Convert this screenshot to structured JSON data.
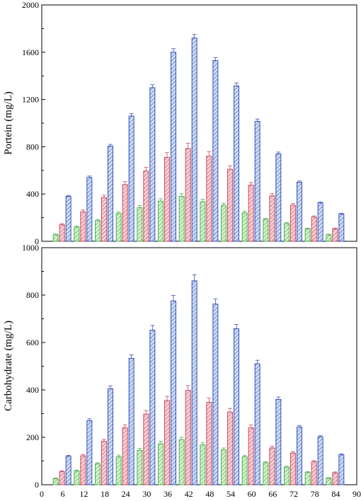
{
  "chart_data": [
    {
      "type": "bar",
      "title": "",
      "xlabel": "",
      "ylabel": "Portein (mg/L)",
      "ylim": [
        0,
        2000
      ],
      "yticks": [
        0,
        400,
        800,
        1200,
        1600,
        2000
      ],
      "ytick_labels": [
        "0",
        "400",
        "800",
        "1200",
        "1600",
        "2000"
      ],
      "x": [
        6,
        12,
        18,
        24,
        30,
        36,
        42,
        48,
        54,
        60,
        66,
        72,
        78,
        84
      ],
      "xlim": [
        0,
        90
      ],
      "legend": "none",
      "grid": false,
      "series": [
        {
          "color": "#4caf50",
          "fill": "#d6f2cf",
          "values": [
            55,
            120,
            175,
            235,
            285,
            340,
            380,
            335,
            305,
            240,
            185,
            150,
            105,
            55
          ],
          "errors": [
            6,
            8,
            10,
            14,
            18,
            20,
            22,
            20,
            18,
            15,
            10,
            8,
            6,
            5
          ]
        },
        {
          "color": "#c84a5c",
          "fill": "#f7d3d8",
          "values": [
            140,
            250,
            370,
            480,
            595,
            710,
            785,
            720,
            610,
            475,
            385,
            305,
            205,
            105
          ],
          "errors": [
            10,
            15,
            20,
            25,
            30,
            40,
            45,
            40,
            30,
            22,
            18,
            15,
            10,
            7
          ]
        },
        {
          "color": "#3a4fb5",
          "fill": "#cfe0f5",
          "values": [
            380,
            540,
            805,
            1060,
            1300,
            1600,
            1720,
            1530,
            1315,
            1015,
            740,
            500,
            325,
            230
          ],
          "errors": [
            8,
            12,
            15,
            20,
            25,
            30,
            30,
            25,
            25,
            20,
            15,
            10,
            8,
            6
          ]
        }
      ]
    },
    {
      "type": "bar",
      "title": "",
      "xlabel": "",
      "ylabel": "Carbohydrate (mg/L)",
      "ylim": [
        0,
        1000
      ],
      "yticks": [
        0,
        200,
        400,
        600,
        800,
        1000
      ],
      "ytick_labels": [
        "0",
        "200",
        "400",
        "600",
        "800",
        "1000"
      ],
      "x": [
        6,
        12,
        18,
        24,
        30,
        36,
        42,
        48,
        54,
        60,
        66,
        72,
        78,
        84
      ],
      "xlim": [
        0,
        90
      ],
      "xticks": [
        0,
        6,
        12,
        18,
        24,
        30,
        36,
        42,
        48,
        54,
        60,
        66,
        72,
        78,
        84,
        90
      ],
      "xtick_labels": [
        "0",
        "6",
        "12",
        "18",
        "24",
        "30",
        "36",
        "42",
        "48",
        "54",
        "60",
        "66",
        "72",
        "78",
        "84",
        "90"
      ],
      "legend": "none",
      "grid": false,
      "series": [
        {
          "color": "#4caf50",
          "fill": "#d6f2cf",
          "values": [
            25,
            58,
            88,
            118,
            145,
            173,
            190,
            168,
            147,
            118,
            93,
            74,
            52,
            27
          ],
          "errors": [
            3,
            4,
            5,
            7,
            8,
            10,
            10,
            9,
            8,
            6,
            5,
            4,
            3,
            3
          ]
        },
        {
          "color": "#c84a5c",
          "fill": "#f7d3d8",
          "values": [
            55,
            122,
            183,
            240,
            298,
            355,
            398,
            348,
            307,
            240,
            155,
            133,
            97,
            50
          ],
          "errors": [
            4,
            6,
            8,
            12,
            15,
            18,
            20,
            17,
            15,
            12,
            8,
            6,
            5,
            4
          ]
        },
        {
          "color": "#3a4fb5",
          "fill": "#cfe0f5",
          "values": [
            120,
            270,
            405,
            533,
            652,
            775,
            860,
            762,
            658,
            510,
            360,
            243,
            202,
            126
          ],
          "errors": [
            4,
            8,
            12,
            15,
            20,
            24,
            26,
            22,
            18,
            15,
            10,
            7,
            5,
            4
          ]
        }
      ]
    }
  ]
}
